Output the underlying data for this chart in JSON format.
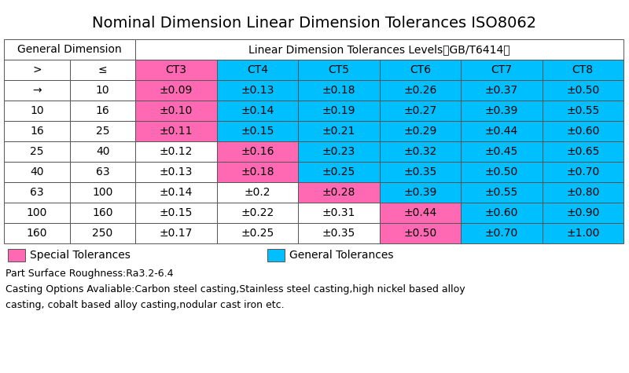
{
  "title": "Nominal Dimension Linear Dimension Tolerances ISO8062",
  "header_row1": [
    "General Dimension",
    "Linear Dimension Tolerances Levels（GB/T6414）"
  ],
  "header_row2": [
    ">",
    "≤",
    "CT3",
    "CT4",
    "CT5",
    "CT6",
    "CT7",
    "CT8"
  ],
  "rows": [
    [
      "→",
      "10",
      "±0.09",
      "±0.13",
      "±0.18",
      "±0.26",
      "±0.37",
      "±0.50"
    ],
    [
      "10",
      "16",
      "±0.10",
      "±0.14",
      "±0.19",
      "±0.27",
      "±0.39",
      "±0.55"
    ],
    [
      "16",
      "25",
      "±0.11",
      "±0.15",
      "±0.21",
      "±0.29",
      "±0.44",
      "±0.60"
    ],
    [
      "25",
      "40",
      "±0.12",
      "±0.16",
      "±0.23",
      "±0.32",
      "±0.45",
      "±0.65"
    ],
    [
      "40",
      "63",
      "±0.13",
      "±0.18",
      "±0.25",
      "±0.35",
      "±0.50",
      "±0.70"
    ],
    [
      "63",
      "100",
      "±0.14",
      "±0.2",
      "±0.28",
      "±0.39",
      "±0.55",
      "±0.80"
    ],
    [
      "100",
      "160",
      "±0.15",
      "±0.22",
      "±0.31",
      "±0.44",
      "±0.60",
      "±0.90"
    ],
    [
      "160",
      "250",
      "±0.17",
      "±0.25",
      "±0.35",
      "±0.50",
      "±0.70",
      "±1.00"
    ]
  ],
  "cell_colors": [
    [
      "white",
      "white",
      "magenta",
      "cyan",
      "cyan",
      "cyan",
      "cyan",
      "cyan"
    ],
    [
      "white",
      "white",
      "magenta",
      "cyan",
      "cyan",
      "cyan",
      "cyan",
      "cyan"
    ],
    [
      "white",
      "white",
      "magenta",
      "cyan",
      "cyan",
      "cyan",
      "cyan",
      "cyan"
    ],
    [
      "white",
      "white",
      "white",
      "magenta",
      "cyan",
      "cyan",
      "cyan",
      "cyan"
    ],
    [
      "white",
      "white",
      "white",
      "magenta",
      "cyan",
      "cyan",
      "cyan",
      "cyan"
    ],
    [
      "white",
      "white",
      "white",
      "white",
      "magenta",
      "cyan",
      "cyan",
      "cyan"
    ],
    [
      "white",
      "white",
      "white",
      "white",
      "white",
      "magenta",
      "cyan",
      "cyan"
    ],
    [
      "white",
      "white",
      "white",
      "white",
      "white",
      "magenta",
      "cyan",
      "cyan"
    ]
  ],
  "header2_colors": [
    "white",
    "white",
    "magenta",
    "cyan",
    "cyan",
    "cyan",
    "cyan",
    "cyan"
  ],
  "color_magenta": "#FF69B4",
  "color_cyan": "#00BFFF",
  "color_white": "#ffffff",
  "note1": "Part Surface Roughness:Ra3.2-6.4",
  "note2": "Casting Options Avaliable:Carbon steel casting,Stainless steel casting,high nickel based alloy",
  "note3": "casting, cobalt based alloy casting,nodular cast iron etc.",
  "legend_special": "Special Tolerances",
  "legend_general": "General Tolerances",
  "background_color": "#ffffff",
  "title_fontsize": 14,
  "cell_fontsize": 10,
  "note_fontsize": 9
}
